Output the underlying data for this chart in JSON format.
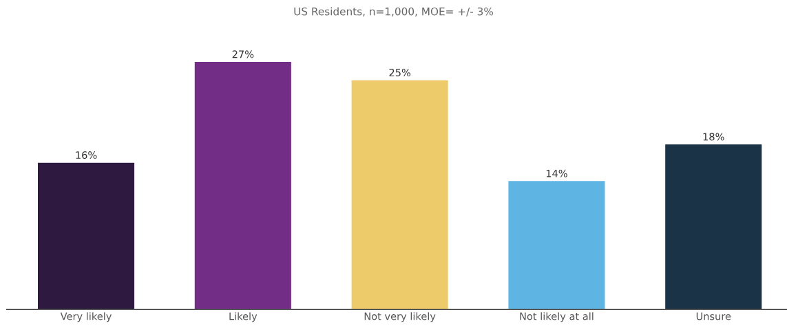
{
  "chart_data": {
    "type": "bar",
    "title": "US Residents, n=1,000, MOE= +/- 3%",
    "categories": [
      "Very likely",
      "Likely",
      "Not very likely",
      "Not likely at all",
      "Unsure"
    ],
    "values": [
      16,
      27,
      25,
      14,
      18
    ],
    "colors": [
      "#2e1a40",
      "#722e87",
      "#edcb6b",
      "#5eb5e3",
      "#1b3347"
    ],
    "value_labels": [
      "16%",
      "27%",
      "25%",
      "14%",
      "18%"
    ],
    "tick_labels": "x",
    "grid": false,
    "legend": false
  }
}
